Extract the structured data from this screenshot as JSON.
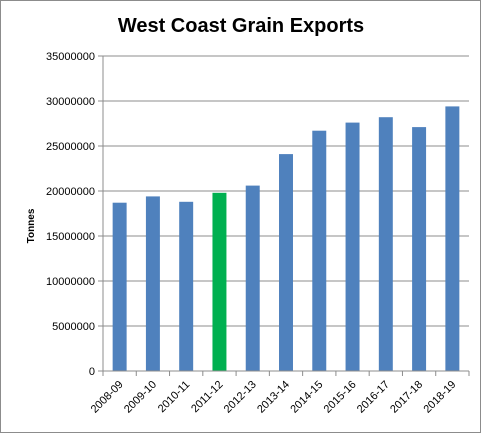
{
  "chart_data": {
    "type": "bar",
    "title": "West Coast Grain Exports",
    "xlabel": "",
    "ylabel": "Tonnes",
    "categories": [
      "2008-09",
      "2009-10",
      "2010-11",
      "2011-12",
      "2012-13",
      "2013-14",
      "2014-15",
      "2015-16",
      "2016-17",
      "2017-18",
      "2018-19"
    ],
    "values": [
      18700000,
      19400000,
      18800000,
      19800000,
      20600000,
      24100000,
      26700000,
      27600000,
      28200000,
      27100000,
      29400000
    ],
    "highlight_index": 3,
    "yticks": [
      "0",
      "5000000",
      "10000000",
      "15000000",
      "20000000",
      "25000000",
      "30000000",
      "35000000"
    ],
    "ylim": [
      0,
      35000000
    ],
    "grid": true,
    "legend": "none",
    "colors": {
      "bar": "#4f81bd",
      "highlight": "#00b050",
      "grid": "#8c8c8c",
      "axis": "#8c8c8c"
    }
  }
}
